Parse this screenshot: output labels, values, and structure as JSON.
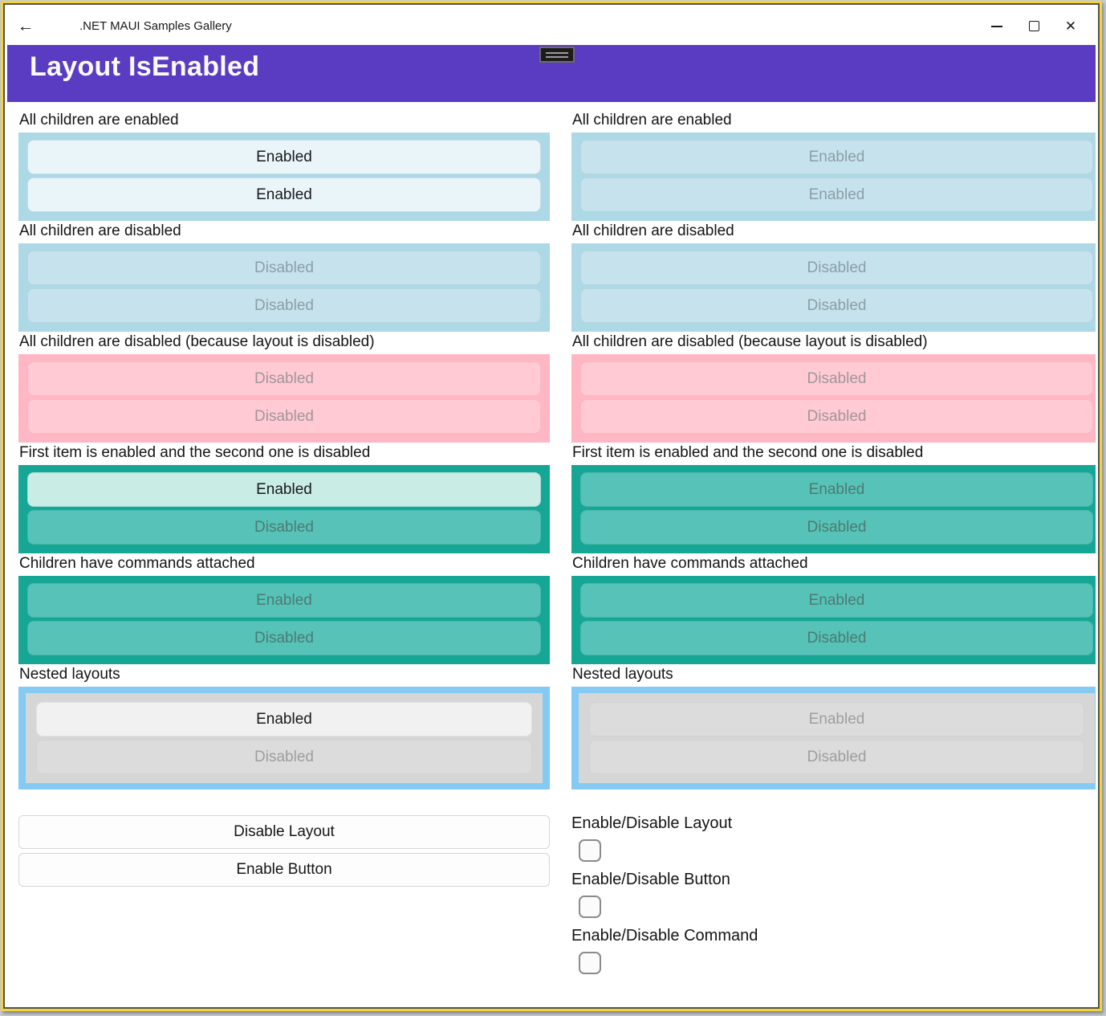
{
  "titlebar": {
    "back_icon": "←",
    "title": ".NET MAUI Samples Gallery",
    "close_icon": "✕"
  },
  "header": {
    "title": "Layout IsEnabled"
  },
  "colors": {
    "header_bg": "#5a3cc2",
    "window_border": "#f2d53e",
    "lightblue": "#add8e6",
    "pink": "#ffb7c3",
    "teal": "#16a695",
    "skyblue": "#84caf2",
    "nested_gray": "#d6d6d6"
  },
  "columns": {
    "left": {
      "sections": [
        {
          "label": "All children are enabled",
          "buttons": [
            "Enabled",
            "Enabled"
          ]
        },
        {
          "label": "All children are disabled",
          "buttons": [
            "Disabled",
            "Disabled"
          ]
        },
        {
          "label": "All children are disabled (because layout is disabled)",
          "buttons": [
            "Disabled",
            "Disabled"
          ]
        },
        {
          "label": "First item is enabled and the second one is disabled",
          "buttons": [
            "Enabled",
            "Disabled"
          ]
        },
        {
          "label": "Children have commands attached",
          "buttons": [
            "Enabled",
            "Disabled"
          ]
        },
        {
          "label": "Nested layouts",
          "buttons": [
            "Enabled",
            "Disabled"
          ]
        }
      ],
      "actions": [
        "Disable Layout",
        "Enable Button"
      ]
    },
    "right": {
      "sections": [
        {
          "label": "All children are enabled",
          "buttons": [
            "Enabled",
            "Enabled"
          ]
        },
        {
          "label": "All children are disabled",
          "buttons": [
            "Disabled",
            "Disabled"
          ]
        },
        {
          "label": "All children are disabled (because layout is disabled)",
          "buttons": [
            "Disabled",
            "Disabled"
          ]
        },
        {
          "label": "First item is enabled and the second one is disabled",
          "buttons": [
            "Enabled",
            "Disabled"
          ]
        },
        {
          "label": "Children have commands attached",
          "buttons": [
            "Enabled",
            "Disabled"
          ]
        },
        {
          "label": "Nested layouts",
          "buttons": [
            "Enabled",
            "Disabled"
          ]
        }
      ],
      "toggles": [
        "Enable/Disable Layout",
        "Enable/Disable Button",
        "Enable/Disable Command"
      ]
    }
  }
}
